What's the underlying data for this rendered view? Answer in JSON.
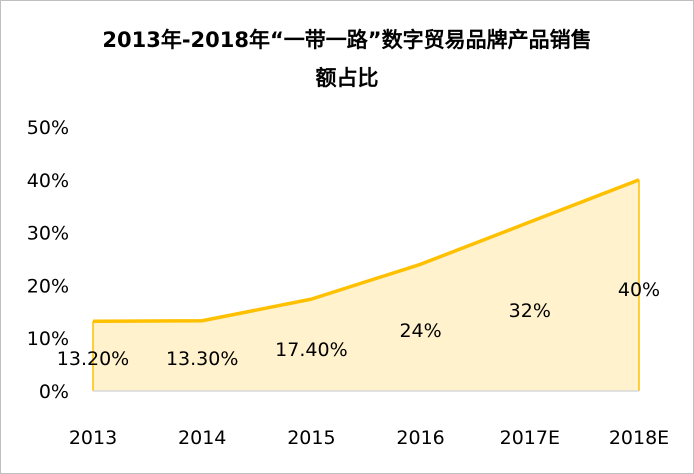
{
  "chart_data": {
    "type": "area",
    "title_line1": "2013年-2018年“一带一路”数字贸易品牌产品销售",
    "title_line2": "额占比",
    "categories": [
      "2013",
      "2014",
      "2015",
      "2016",
      "2017E",
      "2018E"
    ],
    "values": [
      13.2,
      13.3,
      17.4,
      24,
      32,
      40
    ],
    "data_labels": [
      "13.20%",
      "13.30%",
      "17.40%",
      "24%",
      "32%",
      "40%"
    ],
    "y_ticks": [
      "0%",
      "10%",
      "20%",
      "30%",
      "40%",
      "50%"
    ],
    "ylim": [
      0,
      50
    ],
    "grid": false,
    "legend": "none",
    "colors": {
      "line": "#FFC000",
      "fill": "#FFF2CC",
      "axis": "#D9D9D9"
    }
  }
}
